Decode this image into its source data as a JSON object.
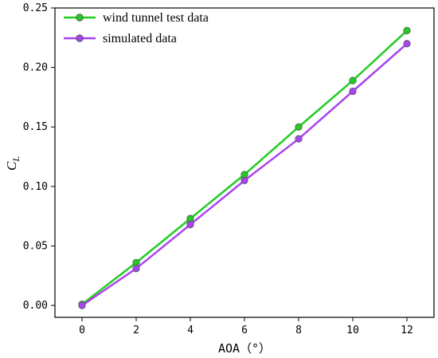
{
  "chart_data": {
    "type": "line",
    "xlabel": "AOA（°）",
    "ylabel_main": "C",
    "ylabel_sub": "L",
    "xlim": [
      -1,
      13
    ],
    "ylim": [
      -0.01,
      0.25
    ],
    "x_ticks": [
      0,
      2,
      4,
      6,
      8,
      10,
      12
    ],
    "x_tick_labels": [
      "0",
      "2",
      "4",
      "6",
      "8",
      "10",
      "12"
    ],
    "y_ticks": [
      0,
      0.05,
      0.1,
      0.15,
      0.2,
      0.25
    ],
    "y_tick_labels": [
      "0.00",
      "0.05",
      "0.10",
      "0.15",
      "0.20",
      "0.25"
    ],
    "legend_position": "top-left",
    "grid": false,
    "x": [
      0,
      2,
      4,
      6,
      8,
      10,
      12
    ],
    "series": [
      {
        "name": "wind tunnel test data",
        "color": "#22cc22",
        "values": [
          0.001,
          0.036,
          0.073,
          0.11,
          0.15,
          0.189,
          0.231
        ]
      },
      {
        "name": "simulated data",
        "color": "#aa44ee",
        "values": [
          0.0,
          0.031,
          0.068,
          0.105,
          0.14,
          0.18,
          0.22
        ]
      }
    ]
  }
}
